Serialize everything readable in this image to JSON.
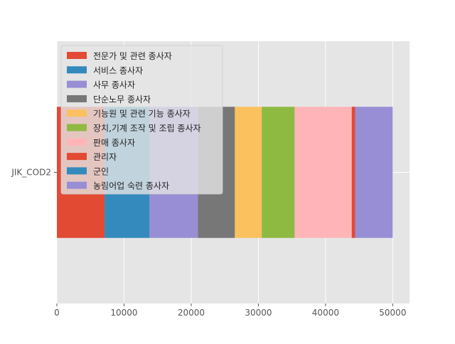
{
  "chart_data": {
    "type": "bar",
    "orientation": "horizontal",
    "stacked": true,
    "style": "ggplot",
    "categories": [
      "JIK_COD2"
    ],
    "series": [
      {
        "name": "전문가 및 관련 종사자",
        "values": [
          7100
        ],
        "color": "#E24A33"
      },
      {
        "name": "서비스 종사자",
        "values": [
          6700
        ],
        "color": "#348ABD"
      },
      {
        "name": "사무 종사자",
        "values": [
          7200
        ],
        "color": "#988ED5"
      },
      {
        "name": "단순노무 종사자",
        "values": [
          5500
        ],
        "color": "#777777"
      },
      {
        "name": "기능원 및 관련 기능 종사자",
        "values": [
          4000
        ],
        "color": "#FBC15E"
      },
      {
        "name": "장치,기계 조작 및 조립 종사자",
        "values": [
          4900
        ],
        "color": "#8EBA42"
      },
      {
        "name": "판매 종사자",
        "values": [
          8500
        ],
        "color": "#FFB5B8"
      },
      {
        "name": "관리자",
        "values": [
          500
        ],
        "color": "#E24A33"
      },
      {
        "name": "군인",
        "values": [
          0
        ],
        "color": "#348ABD"
      },
      {
        "name": "농림어업 숙련 종사자",
        "values": [
          5600
        ],
        "color": "#988ED5"
      }
    ],
    "x_ticks": [
      0,
      10000,
      20000,
      30000,
      40000,
      50000
    ],
    "xlim": [
      0,
      52500
    ],
    "xlabel": "",
    "ylabel": "",
    "title": "",
    "grid": true,
    "legend_position": "upper-left"
  }
}
